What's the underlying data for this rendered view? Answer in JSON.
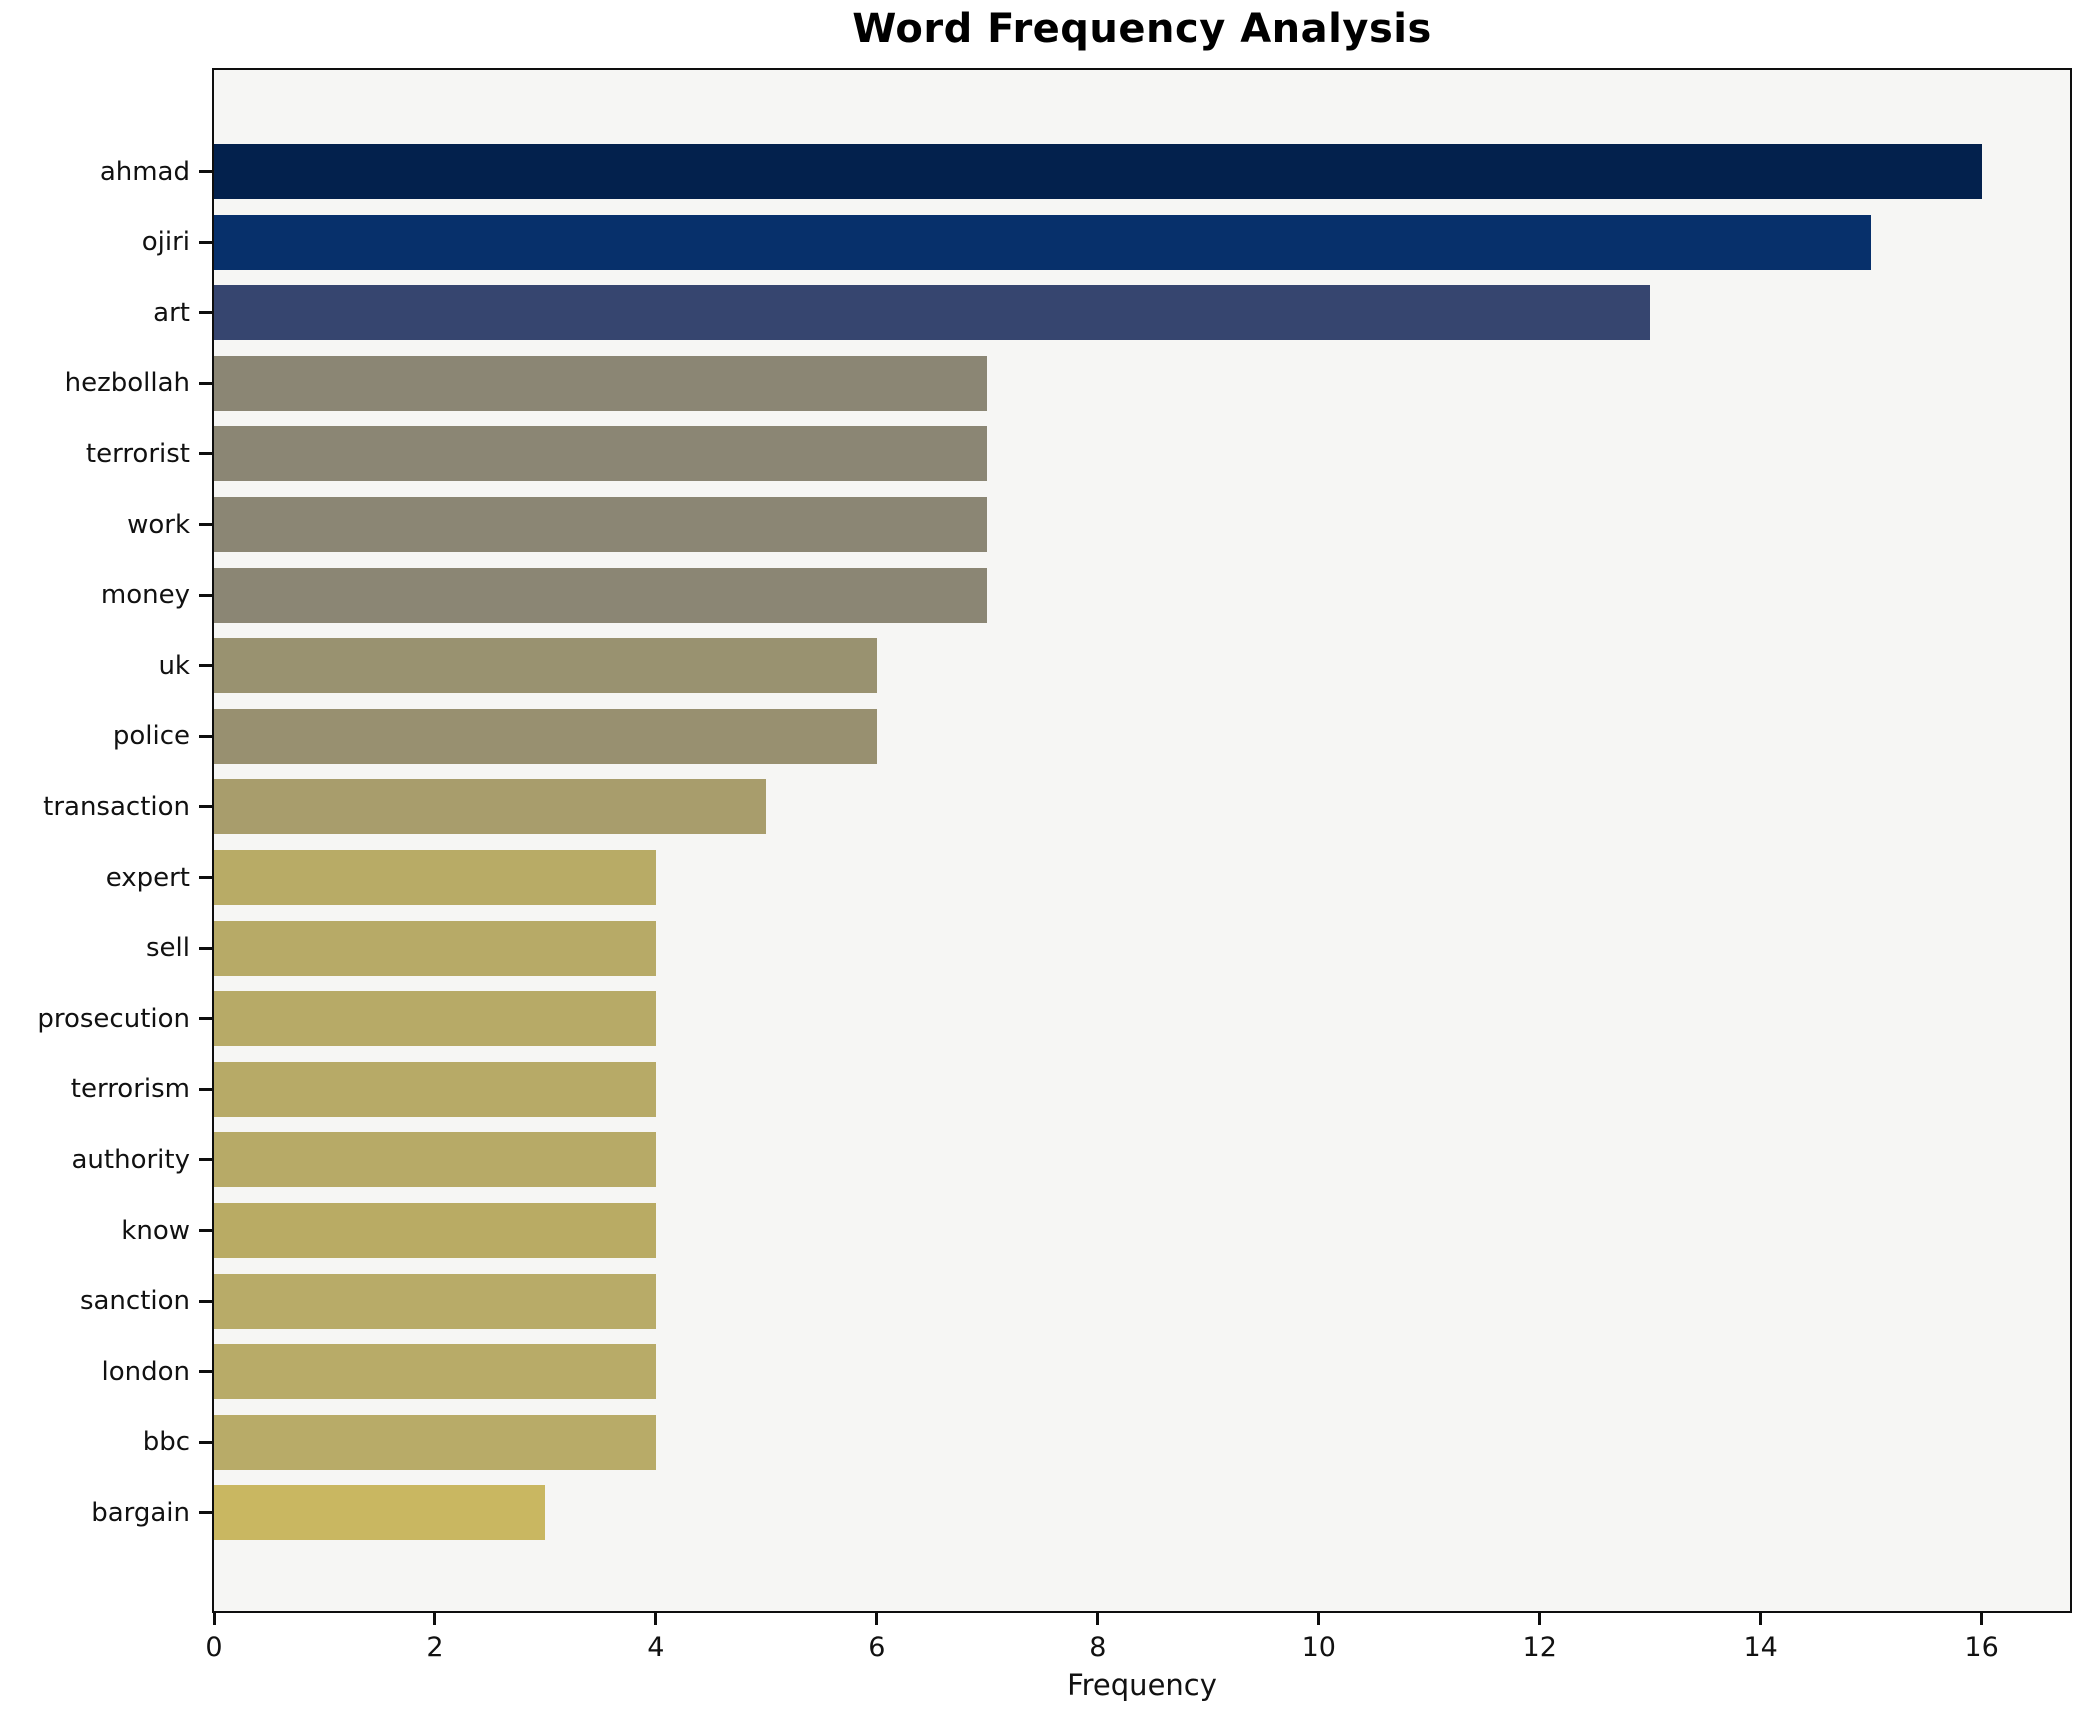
{
  "chart_data": {
    "type": "bar",
    "orientation": "horizontal",
    "title": "Word Frequency Analysis",
    "xlabel": "Frequency",
    "ylabel": "",
    "categories": [
      "ahmad",
      "ojiri",
      "art",
      "hezbollah",
      "terrorist",
      "work",
      "money",
      "uk",
      "police",
      "transaction",
      "expert",
      "sell",
      "prosecution",
      "terrorism",
      "authority",
      "know",
      "sanction",
      "london",
      "bbc",
      "bargain"
    ],
    "values": [
      16,
      15,
      13,
      7,
      7,
      7,
      7,
      6,
      6,
      5,
      4,
      4,
      4,
      4,
      4,
      4,
      4,
      4,
      4,
      3
    ],
    "bar_colors": [
      "#03214d",
      "#07306b",
      "#36456f",
      "#8b8674",
      "#8b8674",
      "#8b8674",
      "#8b8674",
      "#999270",
      "#989070",
      "#a89d6c",
      "#b8ab66",
      "#b7aa67",
      "#b7aa67",
      "#b7aa67",
      "#b7aa67",
      "#b9ab64",
      "#b8ab68",
      "#b8ab68",
      "#b8ab68",
      "#c9b761"
    ],
    "xticks": [
      "0",
      "2",
      "4",
      "6",
      "8",
      "10",
      "12",
      "14",
      "16"
    ],
    "xtick_values": [
      0,
      2,
      4,
      6,
      8,
      10,
      12,
      14,
      16
    ],
    "xlim": [
      0,
      16.8
    ],
    "grid": false,
    "legend": null,
    "plot_background": "#f6f6f4",
    "figure_background": "#ffffff",
    "spine_color": "#0e0e0e",
    "text_color": "#111111"
  }
}
